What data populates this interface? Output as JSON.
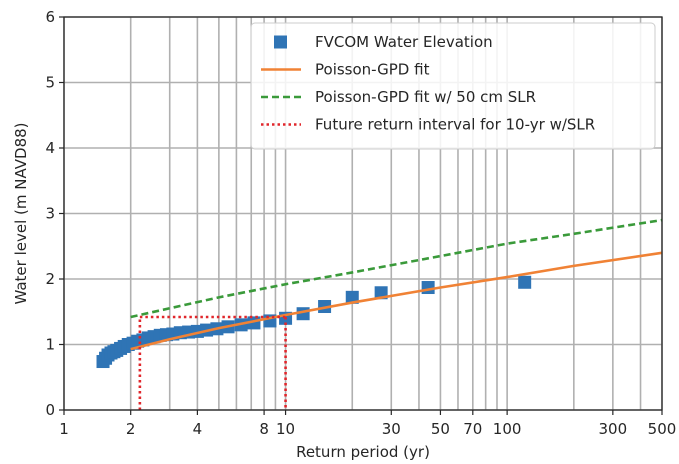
{
  "chart_data": {
    "type": "scatter",
    "xlabel": "Return period (yr)",
    "ylabel": "Water level (m NAVD88)",
    "xscale": "log",
    "xlim": [
      1,
      500
    ],
    "ylim": [
      0,
      6
    ],
    "xticks": [
      1,
      2,
      4,
      8,
      10,
      30,
      50,
      70,
      100,
      300,
      500
    ],
    "xtick_labels": [
      "1",
      "2",
      "4",
      "8",
      "10",
      "30",
      "50",
      "70",
      "100",
      "300",
      "500"
    ],
    "yticks": [
      0,
      1,
      2,
      3,
      4,
      5,
      6
    ],
    "ytick_labels": [
      "0",
      "1",
      "2",
      "3",
      "4",
      "5",
      "6"
    ],
    "grid": true,
    "legend_position": "top-right",
    "series": [
      {
        "name": "FVCOM Water Elevation",
        "type": "scatter",
        "marker": "square",
        "color": "#2f74b5",
        "x": [
          1.5,
          1.54,
          1.58,
          1.63,
          1.68,
          1.73,
          1.8,
          1.87,
          1.95,
          2.05,
          2.15,
          2.27,
          2.4,
          2.55,
          2.72,
          2.9,
          3.1,
          3.35,
          3.65,
          4.0,
          4.4,
          4.9,
          5.5,
          6.3,
          7.2,
          8.5,
          10.0,
          12.0,
          15.0,
          20.0,
          27.0,
          44.0,
          120.0
        ],
        "y": [
          0.74,
          0.79,
          0.84,
          0.87,
          0.89,
          0.91,
          0.94,
          0.97,
          1.0,
          1.02,
          1.05,
          1.07,
          1.1,
          1.12,
          1.14,
          1.15,
          1.16,
          1.18,
          1.19,
          1.2,
          1.22,
          1.24,
          1.27,
          1.3,
          1.33,
          1.36,
          1.4,
          1.47,
          1.58,
          1.72,
          1.79,
          1.87,
          1.95
        ]
      },
      {
        "name": "Poisson-GPD fit",
        "type": "line",
        "style": "solid",
        "color": "#f08235",
        "x": [
          2,
          3,
          5,
          10,
          20,
          50,
          100,
          200,
          500
        ],
        "y": [
          0.93,
          1.08,
          1.25,
          1.45,
          1.64,
          1.87,
          2.03,
          2.2,
          2.4
        ]
      },
      {
        "name": "Poisson-GPD fit w/ 50 cm SLR",
        "type": "line",
        "style": "dashed",
        "color": "#3a9a3a",
        "x": [
          2,
          5,
          10,
          20,
          50,
          100,
          200,
          500
        ],
        "y": [
          1.42,
          1.72,
          1.92,
          2.1,
          2.35,
          2.54,
          2.69,
          2.9
        ]
      },
      {
        "name": "Future return interval for 10-yr w/SLR",
        "type": "line",
        "style": "dotted",
        "color": "#e0262b",
        "segments": [
          {
            "x": [
              2.2,
              2.2
            ],
            "y": [
              0,
              1.42
            ]
          },
          {
            "x": [
              2.2,
              10
            ],
            "y": [
              1.42,
              1.42
            ]
          },
          {
            "x": [
              10,
              10
            ],
            "y": [
              1.42,
              0
            ]
          }
        ]
      }
    ]
  }
}
